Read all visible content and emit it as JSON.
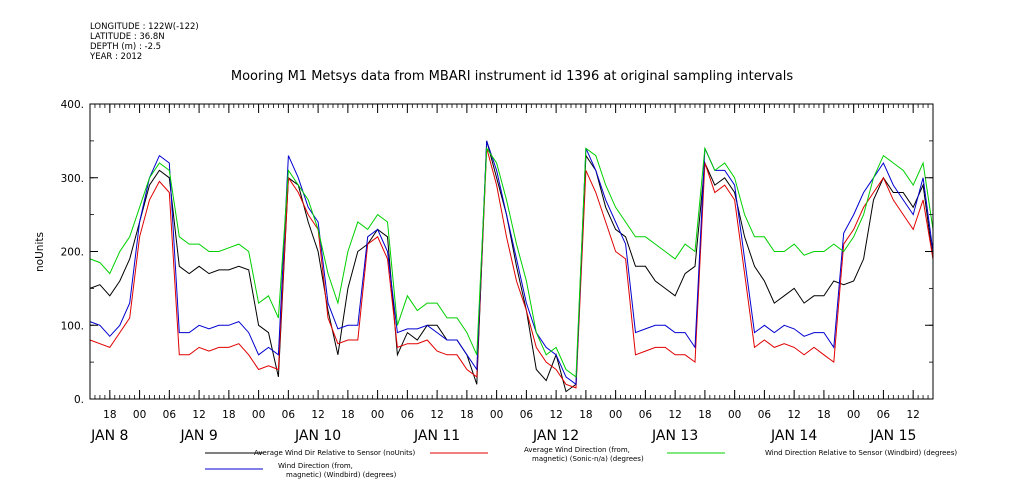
{
  "meta_lines": [
    "LONGITUDE : 122W(-122)",
    "LATITUDE : 36.8N",
    "DEPTH (m) : -2.5",
    "YEAR : 2012"
  ],
  "chart_data": {
    "type": "line",
    "title": "Mooring M1 Metsys data from MBARI instrument id 1396 at original sampling intervals",
    "ylabel": "noUnits",
    "xlabel": "",
    "ylim": [
      0,
      400
    ],
    "xlim_hours": [
      0,
      170
    ],
    "y_ticks": [
      "0.",
      "100.",
      "200.",
      "300.",
      "400."
    ],
    "y_tick_values": [
      0,
      100,
      200,
      300,
      400
    ],
    "hour_ticks": [
      {
        "h": 4,
        "label": "18"
      },
      {
        "h": 10,
        "label": "00"
      },
      {
        "h": 16,
        "label": "06"
      },
      {
        "h": 22,
        "label": "12"
      },
      {
        "h": 28,
        "label": "18"
      },
      {
        "h": 34,
        "label": "00"
      },
      {
        "h": 40,
        "label": "06"
      },
      {
        "h": 46,
        "label": "12"
      },
      {
        "h": 52,
        "label": "18"
      },
      {
        "h": 58,
        "label": "00"
      },
      {
        "h": 64,
        "label": "06"
      },
      {
        "h": 70,
        "label": "12"
      },
      {
        "h": 76,
        "label": "18"
      },
      {
        "h": 82,
        "label": "00"
      },
      {
        "h": 88,
        "label": "06"
      },
      {
        "h": 94,
        "label": "12"
      },
      {
        "h": 100,
        "label": "18"
      },
      {
        "h": 106,
        "label": "00"
      },
      {
        "h": 112,
        "label": "06"
      },
      {
        "h": 118,
        "label": "12"
      },
      {
        "h": 124,
        "label": "18"
      },
      {
        "h": 130,
        "label": "00"
      },
      {
        "h": 136,
        "label": "06"
      },
      {
        "h": 142,
        "label": "12"
      },
      {
        "h": 148,
        "label": "18"
      },
      {
        "h": 154,
        "label": "00"
      },
      {
        "h": 160,
        "label": "06"
      },
      {
        "h": 166,
        "label": "12"
      }
    ],
    "day_labels": [
      {
        "h": 4,
        "label": "JAN  8"
      },
      {
        "h": 22,
        "label": "JAN  9"
      },
      {
        "h": 46,
        "label": "JAN 10"
      },
      {
        "h": 70,
        "label": "JAN 11"
      },
      {
        "h": 94,
        "label": "JAN 12"
      },
      {
        "h": 118,
        "label": "JAN 13"
      },
      {
        "h": 142,
        "label": "JAN 14"
      },
      {
        "h": 162,
        "label": "JAN 15"
      }
    ],
    "x_hours": [
      0,
      2,
      4,
      6,
      8,
      10,
      12,
      14,
      16,
      18,
      20,
      22,
      24,
      26,
      28,
      30,
      32,
      34,
      36,
      38,
      40,
      42,
      44,
      46,
      48,
      50,
      52,
      54,
      56,
      58,
      60,
      62,
      64,
      66,
      68,
      70,
      72,
      74,
      76,
      78,
      80,
      82,
      84,
      86,
      88,
      90,
      92,
      94,
      96,
      98,
      100,
      102,
      104,
      106,
      108,
      110,
      112,
      114,
      116,
      118,
      120,
      122,
      124,
      126,
      128,
      130,
      132,
      134,
      136,
      138,
      140,
      142,
      144,
      146,
      148,
      150,
      152,
      154,
      156,
      158,
      160,
      162,
      164,
      166,
      168,
      170
    ],
    "series": [
      {
        "name": "Average Wind Dir Relative to Sensor (noUnits)",
        "color": "#000000",
        "values": [
          150,
          155,
          140,
          160,
          190,
          240,
          290,
          310,
          300,
          180,
          170,
          180,
          170,
          175,
          175,
          180,
          175,
          100,
          90,
          30,
          300,
          290,
          240,
          200,
          120,
          60,
          150,
          200,
          210,
          230,
          220,
          60,
          90,
          80,
          100,
          100,
          80,
          80,
          60,
          20,
          350,
          300,
          250,
          180,
          120,
          40,
          25,
          60,
          10,
          20,
          330,
          310,
          260,
          230,
          220,
          180,
          180,
          160,
          150,
          140,
          170,
          180,
          320,
          290,
          300,
          280,
          220,
          180,
          160,
          130,
          140,
          150,
          130,
          140,
          140,
          160,
          155,
          160,
          190,
          270,
          300,
          280,
          280,
          260,
          290,
          190
        ]
      },
      {
        "name": "Average Wind Direction (from, magnetic) (Sonic-n/a) (degrees)",
        "color": "#e00000",
        "values": [
          80,
          75,
          70,
          90,
          110,
          220,
          270,
          295,
          280,
          60,
          60,
          70,
          65,
          70,
          70,
          75,
          60,
          40,
          45,
          40,
          300,
          280,
          250,
          230,
          110,
          75,
          80,
          80,
          210,
          220,
          190,
          70,
          75,
          75,
          80,
          65,
          60,
          60,
          40,
          30,
          340,
          290,
          220,
          160,
          120,
          70,
          50,
          40,
          20,
          15,
          310,
          280,
          240,
          200,
          190,
          60,
          65,
          70,
          70,
          60,
          60,
          50,
          320,
          280,
          290,
          270,
          170,
          70,
          80,
          70,
          75,
          70,
          60,
          70,
          60,
          50,
          210,
          230,
          260,
          280,
          300,
          270,
          250,
          230,
          270,
          190
        ]
      },
      {
        "name": "Wind Direction (from, magnetic) (Windbird) (degrees)",
        "color": "#0000d0",
        "values": [
          105,
          100,
          85,
          100,
          130,
          240,
          300,
          330,
          320,
          90,
          90,
          100,
          95,
          100,
          100,
          105,
          90,
          60,
          70,
          60,
          330,
          300,
          260,
          240,
          130,
          95,
          100,
          100,
          220,
          230,
          200,
          90,
          95,
          95,
          100,
          90,
          80,
          80,
          60,
          40,
          350,
          310,
          250,
          190,
          130,
          90,
          70,
          60,
          30,
          20,
          340,
          310,
          270,
          240,
          210,
          90,
          95,
          100,
          100,
          90,
          90,
          70,
          340,
          310,
          310,
          290,
          190,
          90,
          100,
          90,
          100,
          95,
          85,
          90,
          90,
          70,
          225,
          250,
          280,
          300,
          320,
          290,
          270,
          250,
          300,
          200
        ]
      },
      {
        "name": "Wind Direction Relative to Sensor (Windbird) (degrees)",
        "color": "#00d000",
        "values": [
          190,
          185,
          170,
          200,
          220,
          260,
          300,
          320,
          310,
          220,
          210,
          210,
          200,
          200,
          205,
          210,
          200,
          130,
          140,
          110,
          310,
          290,
          270,
          230,
          170,
          130,
          200,
          240,
          230,
          250,
          240,
          100,
          140,
          120,
          130,
          130,
          110,
          110,
          90,
          60,
          340,
          320,
          270,
          210,
          160,
          90,
          60,
          70,
          40,
          30,
          340,
          330,
          290,
          260,
          240,
          220,
          220,
          210,
          200,
          190,
          210,
          200,
          340,
          310,
          320,
          300,
          250,
          220,
          220,
          200,
          200,
          210,
          195,
          200,
          200,
          210,
          200,
          220,
          250,
          300,
          330,
          320,
          310,
          290,
          320,
          230
        ]
      }
    ],
    "legend": [
      {
        "color": "#000000",
        "lines": [
          "Average Wind Dir Relative to Sensor (noUnits)"
        ]
      },
      {
        "color": "#e00000",
        "lines": [
          "Average Wind Direction (from,",
          "magnetic) (Sonic-n/a) (degrees)"
        ]
      },
      {
        "color": "#00d000",
        "lines": [
          "Wind Direction Relative to Sensor (Windbird) (degrees)"
        ]
      },
      {
        "color": "#0000d0",
        "lines": [
          "Wind Direction (from,",
          "magnetic) (Windbird) (degrees)"
        ]
      }
    ]
  }
}
